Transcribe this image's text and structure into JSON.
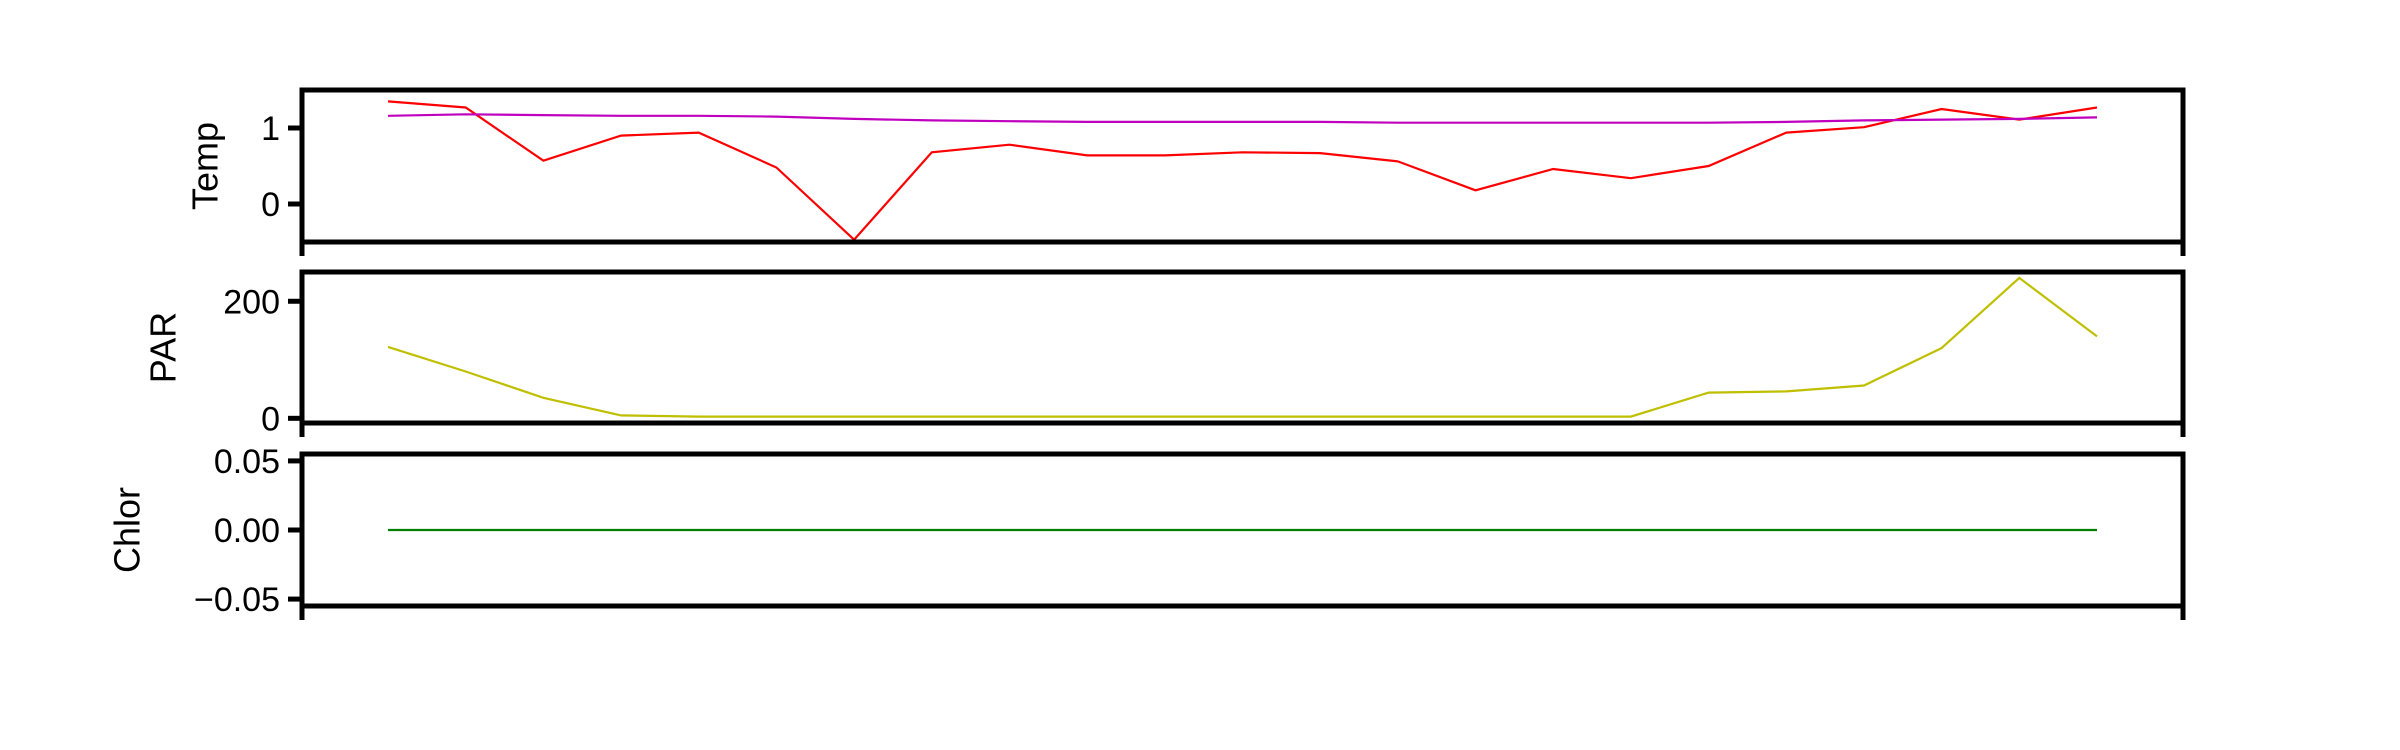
{
  "chart_data": [
    {
      "type": "line",
      "ylabel": "Temp",
      "ylim": [
        -0.5,
        1.5
      ],
      "yticks": [
        0,
        1
      ],
      "ytick_labels": [
        "0",
        "1"
      ],
      "x": [
        1,
        2,
        3,
        4,
        5,
        6,
        7,
        8,
        9,
        10,
        11,
        12,
        13,
        14,
        15,
        16,
        17,
        18,
        19,
        20,
        21,
        22,
        23
      ],
      "series": [
        {
          "color": "#ff0000",
          "values": [
            1.35,
            1.27,
            0.57,
            0.9,
            0.94,
            0.48,
            -0.47,
            0.68,
            0.78,
            0.64,
            0.64,
            0.68,
            0.67,
            0.56,
            0.18,
            0.46,
            0.34,
            0.5,
            0.94,
            1.01,
            1.25,
            1.11,
            1.27
          ]
        },
        {
          "color": "#bf00bf",
          "values": [
            1.16,
            1.18,
            1.17,
            1.16,
            1.16,
            1.15,
            1.12,
            1.1,
            1.09,
            1.08,
            1.08,
            1.08,
            1.08,
            1.07,
            1.07,
            1.07,
            1.07,
            1.07,
            1.08,
            1.1,
            1.11,
            1.12,
            1.14
          ]
        }
      ]
    },
    {
      "type": "line",
      "ylabel": "PAR",
      "ylim": [
        -8,
        250
      ],
      "yticks": [
        0,
        200
      ],
      "ytick_labels": [
        "0",
        "200"
      ],
      "x": [
        1,
        2,
        3,
        4,
        5,
        6,
        7,
        8,
        9,
        10,
        11,
        12,
        13,
        14,
        15,
        16,
        17,
        18,
        19,
        20,
        21,
        22,
        23
      ],
      "series": [
        {
          "color": "#bfbf00",
          "values": [
            122,
            80,
            35,
            5,
            3,
            3,
            3,
            3,
            3,
            3,
            3,
            3,
            3,
            3,
            3,
            3,
            3,
            44,
            46,
            56,
            120,
            240,
            140
          ]
        }
      ]
    },
    {
      "type": "line",
      "ylabel": "Chlor",
      "ylim": [
        -0.055,
        0.055
      ],
      "yticks": [
        0.05,
        0.0,
        -0.05
      ],
      "ytick_labels": [
        "0.05",
        "0.00",
        "−0.05"
      ],
      "x": [
        1,
        2,
        3,
        4,
        5,
        6,
        7,
        8,
        9,
        10,
        11,
        12,
        13,
        14,
        15,
        16,
        17,
        18,
        19,
        20,
        21,
        22,
        23
      ],
      "series": [
        {
          "color": "#008000",
          "values": [
            0,
            0,
            0,
            0,
            0,
            0,
            0,
            0,
            0,
            0,
            0,
            0,
            0,
            0,
            0,
            0,
            0,
            0,
            0,
            0,
            0,
            0,
            0
          ]
        }
      ]
    }
  ]
}
